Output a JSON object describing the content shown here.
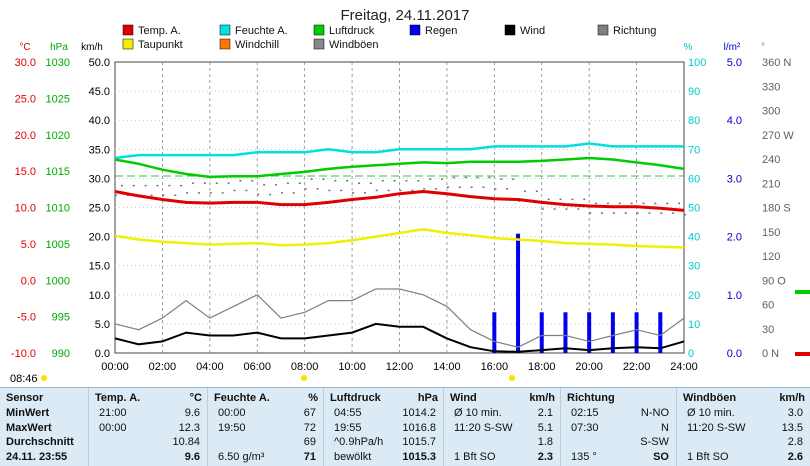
{
  "title": "Freitag, 24.11.2017",
  "legend": [
    {
      "label": "Temp. A.",
      "color": "#e00000"
    },
    {
      "label": "Feuchte A.",
      "color": "#00e0e0"
    },
    {
      "label": "Luftdruck",
      "color": "#00cc00"
    },
    {
      "label": "Regen",
      "color": "#0000ee"
    },
    {
      "label": "Wind",
      "color": "#000000"
    },
    {
      "label": "Richtung",
      "color": "#808080"
    },
    {
      "label": "Taupunkt",
      "color": "#f0f000"
    },
    {
      "label": "Windchill",
      "color": "#ff7700"
    },
    {
      "label": "Windböen",
      "color": "#888888"
    }
  ],
  "axes": {
    "temp_unit": "°C",
    "press_unit": "hPa",
    "wind_unit": "km/h",
    "hum_unit": "%",
    "rain_unit": "l/m²",
    "dir_unit": "°",
    "temp_ticks": [
      "30.0",
      "25.0",
      "20.0",
      "15.0",
      "10.0",
      "5.0",
      "0.0",
      "-5.0",
      "-10.0"
    ],
    "press_ticks": [
      "1030",
      "1025",
      "1020",
      "1015",
      "1010",
      "1005",
      "1000",
      "995",
      "990"
    ],
    "wind_ticks": [
      "50.0",
      "45.0",
      "40.0",
      "35.0",
      "30.0",
      "25.0",
      "20.0",
      "15.0",
      "10.0",
      "5.0",
      "0.0"
    ],
    "hum_ticks": [
      "100",
      "90",
      "80",
      "70",
      "60",
      "50",
      "40",
      "30",
      "20",
      "10",
      "0"
    ],
    "rain_ticks": [
      "5.0",
      "4.0",
      "3.0",
      "2.0",
      "1.0",
      "0.0"
    ],
    "dir_ticks": [
      "360 N",
      "330",
      "300",
      "270 W",
      "240",
      "210",
      "180 S",
      "150",
      "120",
      "90 O",
      "60",
      "30",
      "0 N"
    ],
    "time_ticks": [
      "00:00",
      "02:00",
      "04:00",
      "06:00",
      "08:00",
      "10:00",
      "12:00",
      "14:00",
      "16:00",
      "18:00",
      "20:00",
      "22:00",
      "24:00"
    ],
    "sunrise": "08:46"
  },
  "chart_data": {
    "type": "line",
    "x_hours": [
      0,
      1,
      2,
      3,
      4,
      5,
      6,
      7,
      8,
      9,
      10,
      11,
      12,
      13,
      14,
      15,
      16,
      17,
      18,
      19,
      20,
      21,
      22,
      23,
      24
    ],
    "series": [
      {
        "name": "Temp. A.",
        "axis": "temp",
        "values": [
          12.2,
          11.6,
          11.1,
          10.7,
          10.6,
          10.7,
          10.7,
          10.4,
          10.4,
          10.7,
          11.1,
          11.4,
          11.9,
          12.2,
          11.9,
          11.5,
          11.2,
          11.1,
          10.7,
          10.4,
          10.2,
          10.1,
          10.1,
          9.9,
          9.6
        ]
      },
      {
        "name": "Taupunkt",
        "axis": "temp",
        "values": [
          6.1,
          5.6,
          5.3,
          5.1,
          4.9,
          5.0,
          5.1,
          4.8,
          4.9,
          5.1,
          5.5,
          6.0,
          6.5,
          7.0,
          6.5,
          6.2,
          5.8,
          5.6,
          5.4,
          5.1,
          5.0,
          4.9,
          4.7,
          4.6,
          4.5
        ]
      },
      {
        "name": "Feuchte A.",
        "axis": "hum",
        "values": [
          67,
          68,
          68,
          68,
          68,
          68,
          69,
          69,
          69,
          70,
          69,
          69,
          70,
          70,
          70,
          70,
          71,
          71,
          71,
          71,
          72,
          71,
          71,
          71,
          71
        ]
      },
      {
        "name": "Luftdruck",
        "axis": "press",
        "values": [
          1016.6,
          1016.0,
          1015.2,
          1014.6,
          1014.2,
          1014.3,
          1014.3,
          1014.6,
          1014.9,
          1015.3,
          1015.6,
          1015.8,
          1016.0,
          1016.2,
          1016.1,
          1016.3,
          1016.3,
          1016.3,
          1016.4,
          1016.6,
          1016.8,
          1016.6,
          1016.2,
          1015.8,
          1015.3
        ]
      },
      {
        "name": "Wind",
        "axis": "wind",
        "values": [
          2.5,
          1.5,
          2.0,
          3.5,
          3.0,
          3.0,
          3.5,
          2.5,
          2.5,
          3.0,
          3.5,
          5.0,
          4.5,
          4.5,
          2.5,
          1.0,
          0.3,
          0.2,
          0.5,
          0.8,
          0.5,
          0.8,
          1.0,
          0.8,
          2.0
        ]
      },
      {
        "name": "Windböen",
        "axis": "wind",
        "values": [
          5,
          4,
          6,
          9,
          6,
          8,
          10,
          6,
          7,
          9,
          9,
          11,
          11,
          10,
          8,
          4,
          2,
          1,
          3,
          3,
          2,
          3,
          4,
          3,
          6
        ]
      },
      {
        "name": "Regen",
        "axis": "rain",
        "type": "bar",
        "values": [
          0,
          0,
          0,
          0,
          0,
          0,
          0,
          0,
          0,
          0,
          0,
          0,
          0,
          0,
          0,
          0,
          0.7,
          2.05,
          0.7,
          0.7,
          0.7,
          0.7,
          0.7,
          0.7,
          0
        ]
      }
    ],
    "direction_dots_deg": [
      202,
      202,
      202,
      205,
      205,
      208,
      203,
      205,
      210,
      208,
      205,
      208,
      208,
      210,
      212,
      212,
      210,
      195,
      185,
      185,
      180,
      180,
      180,
      180,
      178
    ],
    "ylim": {
      "temp": [
        -10,
        30
      ],
      "press": [
        990,
        1030
      ],
      "wind": [
        0,
        50
      ],
      "hum": [
        0,
        100
      ],
      "rain": [
        0,
        5
      ],
      "dir": [
        0,
        360
      ]
    }
  },
  "table": {
    "sections": [
      {
        "title": "Sensor",
        "unit": "",
        "rows": [
          [
            "MinWert",
            ""
          ],
          [
            "MaxWert",
            ""
          ],
          [
            "Durchschnitt",
            ""
          ],
          [
            "24.11. 23:55",
            ""
          ]
        ]
      },
      {
        "title": "Temp. A.",
        "unit": "°C",
        "rows": [
          [
            "21:00",
            "9.6"
          ],
          [
            "00:00",
            "12.3"
          ],
          [
            "",
            "10.84"
          ],
          [
            "",
            "9.6"
          ]
        ]
      },
      {
        "title": "Feuchte A.",
        "unit": "%",
        "rows": [
          [
            "00:00",
            "67"
          ],
          [
            "19:50",
            "72"
          ],
          [
            "",
            "69"
          ],
          [
            "6.50 g/m³",
            "71"
          ]
        ]
      },
      {
        "title": "Luftdruck",
        "unit": "hPa",
        "rows": [
          [
            "04:55",
            "1014.2"
          ],
          [
            "19:55",
            "1016.8"
          ],
          [
            "^0.9hPa/h",
            "1015.7"
          ],
          [
            "bewölkt",
            "1015.3"
          ]
        ]
      },
      {
        "title": "Wind",
        "unit": "km/h",
        "rows": [
          [
            "Ø 10 min.",
            "2.1"
          ],
          [
            "11:20   S-SW",
            "5.1"
          ],
          [
            "",
            "1.8"
          ],
          [
            "1 Bft  SO",
            "2.3"
          ]
        ]
      },
      {
        "title": "Richtung",
        "unit": "",
        "rows": [
          [
            "02:15",
            "N-NO"
          ],
          [
            "07:30",
            "N"
          ],
          [
            "",
            "S-SW"
          ],
          [
            "135 °",
            "SO"
          ]
        ]
      },
      {
        "title": "Windböen",
        "unit": "km/h",
        "rows": [
          [
            "Ø 10 min.",
            "3.0"
          ],
          [
            "11:20   S-SW",
            "13.5"
          ],
          [
            "",
            "2.8"
          ],
          [
            "1 Bft  SO",
            "2.6"
          ]
        ]
      }
    ]
  }
}
